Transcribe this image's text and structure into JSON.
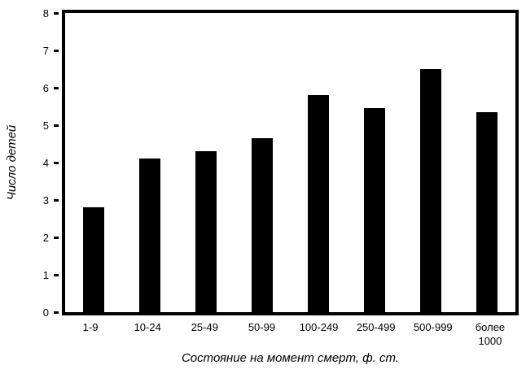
{
  "chart_data": {
    "type": "bar",
    "title": "",
    "xlabel": "Состояние на момент смерт, ф. ст.",
    "ylabel": "Число детей",
    "categories": [
      "1-9",
      "10-24",
      "25-49",
      "50-99",
      "100-249",
      "250-499",
      "500-999",
      "более\n1000"
    ],
    "values": [
      2.8,
      4.1,
      4.3,
      4.65,
      5.8,
      5.45,
      6.5,
      5.35
    ],
    "ylim": [
      0,
      8
    ],
    "yticks": [
      0,
      1,
      2,
      3,
      4,
      5,
      6,
      7,
      8
    ],
    "grid": false,
    "legend": "none",
    "bar_color": "#000000",
    "frame_color": "#000000",
    "background_color": "#ffffff"
  }
}
